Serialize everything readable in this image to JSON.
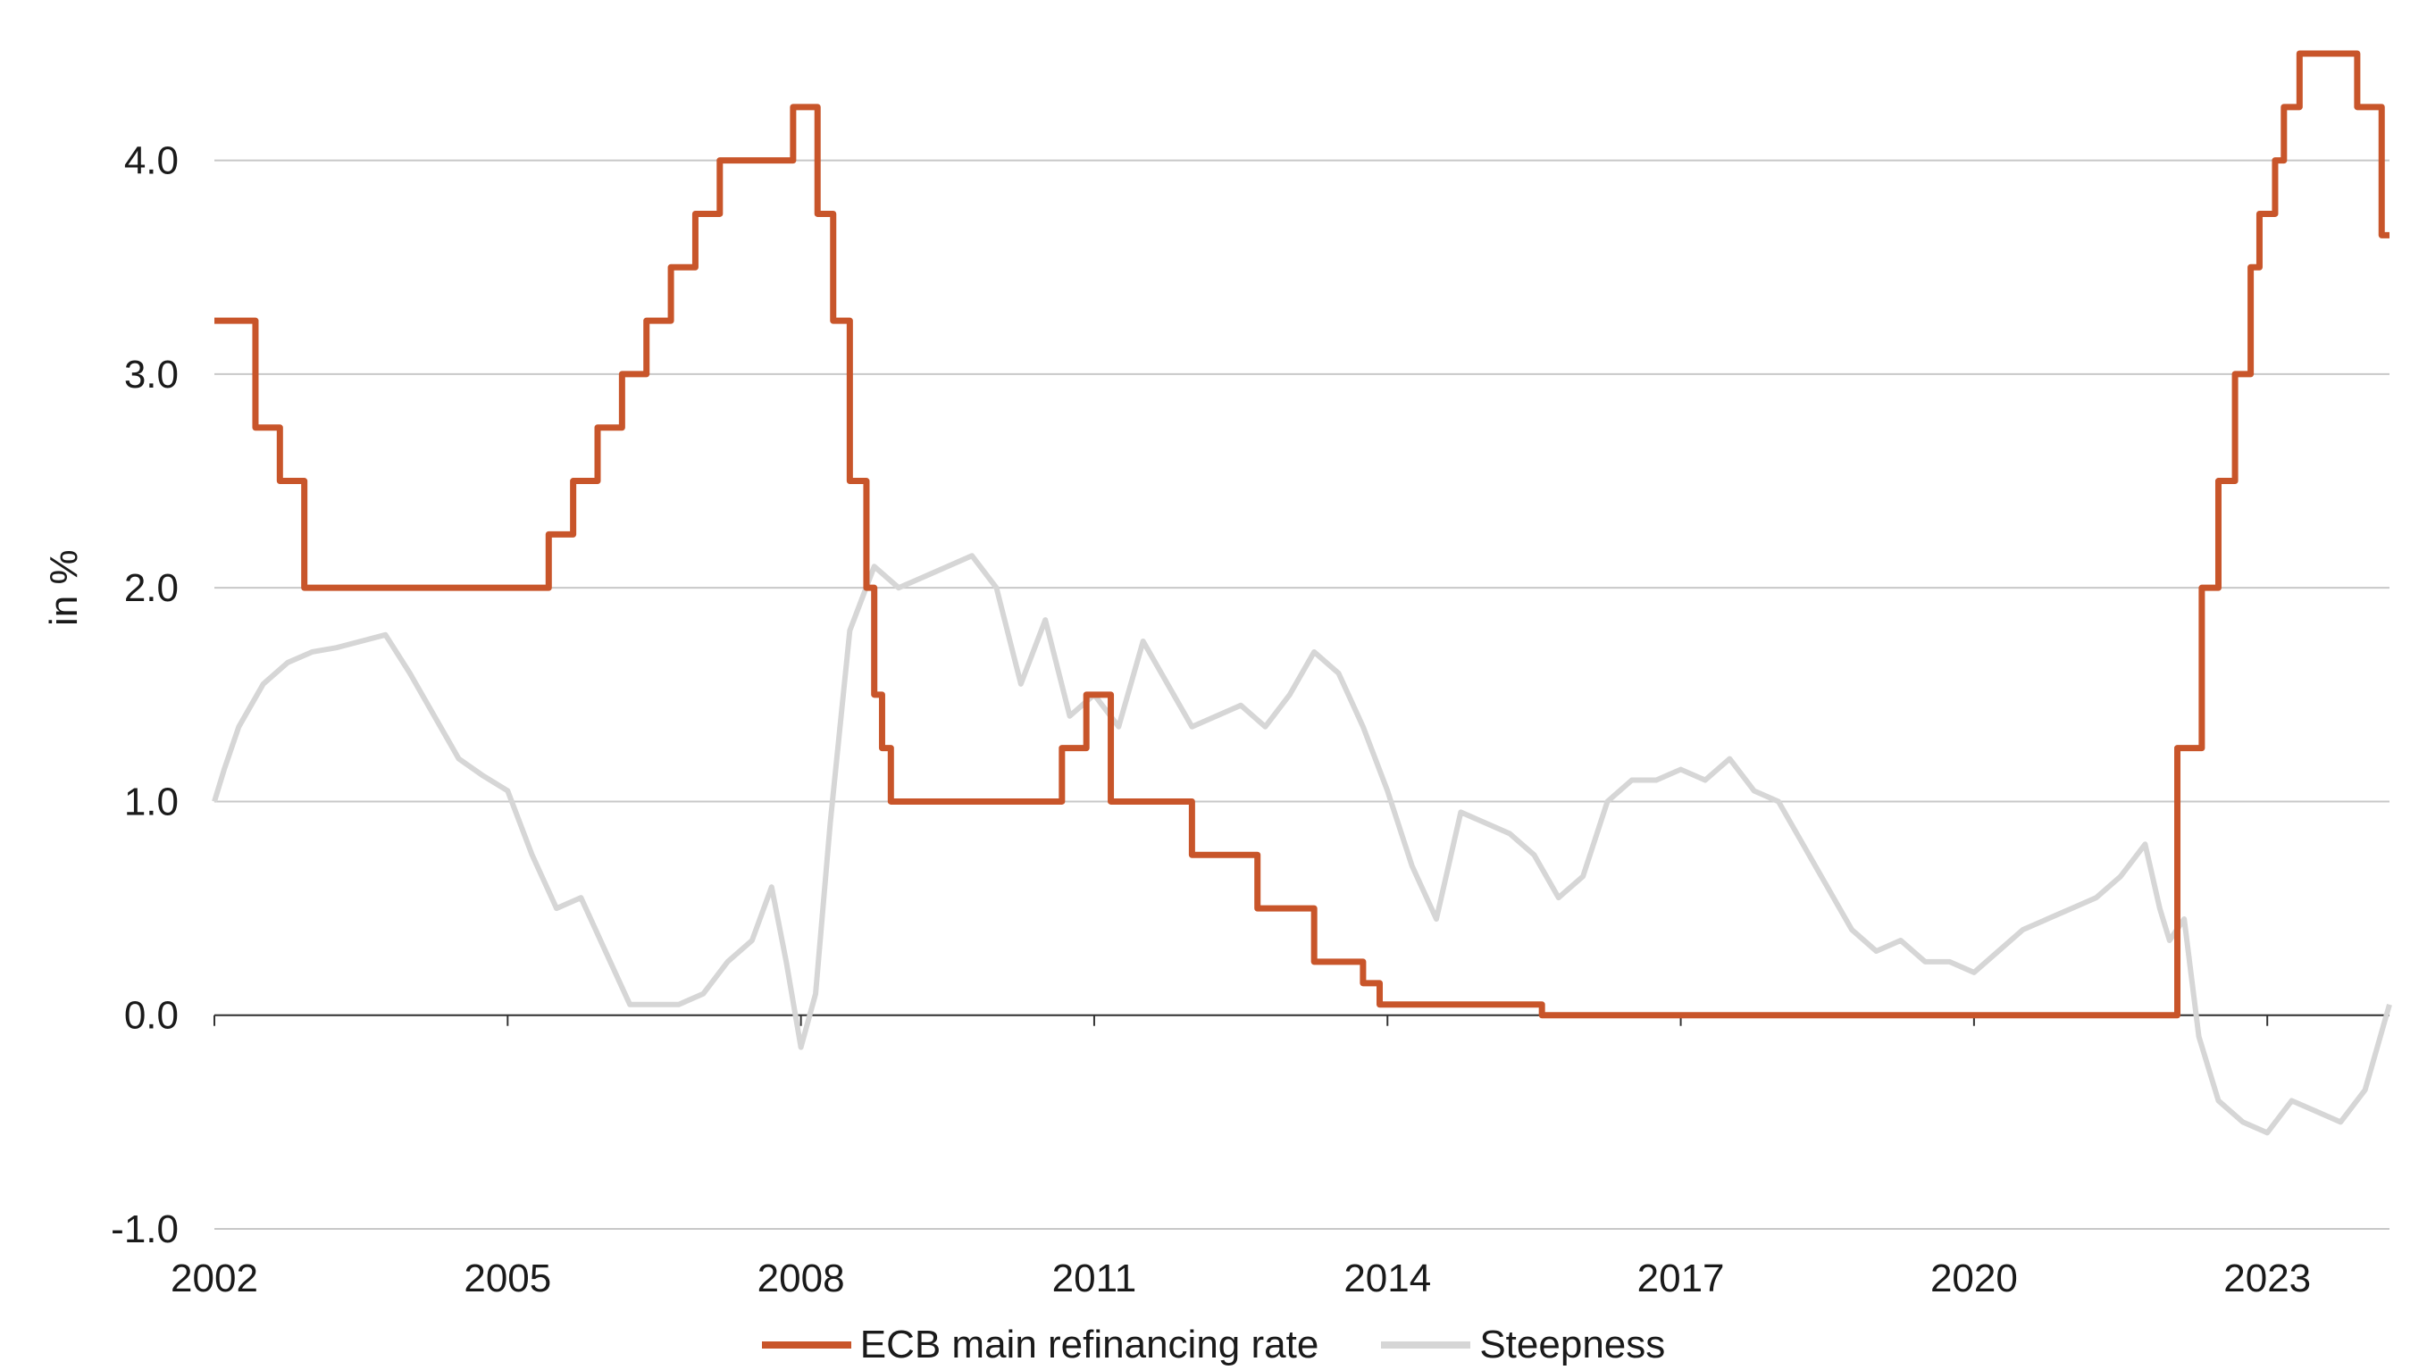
{
  "chart_data": {
    "type": "line",
    "title": "",
    "xlabel": "",
    "ylabel": "in %",
    "xlim": [
      2002.0,
      2024.25
    ],
    "ylim": [
      -1.0,
      4.5
    ],
    "x_ticks": [
      2002,
      2005,
      2008,
      2011,
      2014,
      2017,
      2020,
      2023
    ],
    "x_tick_labels": [
      "2002",
      "2005",
      "2008",
      "2011",
      "2014",
      "2017",
      "2020",
      "2023"
    ],
    "y_ticks": [
      -1.0,
      0.0,
      1.0,
      2.0,
      3.0,
      4.0
    ],
    "y_tick_labels": [
      "-1.0",
      "0.0",
      "1.0",
      "2.0",
      "3.0",
      "4.0"
    ],
    "grid": "horizontal",
    "legend_position": "bottom-center",
    "series": [
      {
        "name": "ECB main refinancing rate",
        "style": "step",
        "color": "#c8552a",
        "x": [
          2002.0,
          2002.42,
          2002.67,
          2002.92,
          2005.42,
          2005.67,
          2005.92,
          2006.17,
          2006.42,
          2006.67,
          2006.92,
          2007.17,
          2007.92,
          2008.17,
          2008.33,
          2008.5,
          2008.67,
          2008.75,
          2008.83,
          2008.92,
          2009.17,
          2010.67,
          2010.92,
          2011.17,
          2011.42,
          2012.0,
          2012.67,
          2013.25,
          2013.75,
          2013.92,
          2015.58,
          2021.92,
          2022.08,
          2022.33,
          2022.5,
          2022.67,
          2022.83,
          2022.92,
          2023.08,
          2023.17,
          2023.33,
          2023.92,
          2024.17,
          2024.25
        ],
        "values": [
          3.25,
          2.75,
          2.5,
          2.0,
          2.25,
          2.5,
          2.75,
          3.0,
          3.25,
          3.5,
          3.75,
          4.0,
          4.25,
          3.75,
          3.25,
          2.5,
          2.0,
          1.5,
          1.25,
          1.0,
          1.0,
          1.25,
          1.5,
          1.0,
          1.0,
          0.75,
          0.5,
          0.25,
          0.15,
          0.05,
          0.0,
          0.0,
          1.25,
          2.0,
          2.5,
          3.0,
          3.5,
          3.75,
          4.0,
          4.25,
          4.5,
          4.25,
          3.65,
          3.65
        ]
      },
      {
        "name": "Steepness",
        "style": "line",
        "color": "#d6d6d6",
        "x": [
          2002.0,
          2002.1,
          2002.25,
          2002.5,
          2002.75,
          2003.0,
          2003.25,
          2003.5,
          2003.75,
          2004.0,
          2004.25,
          2004.5,
          2004.75,
          2005.0,
          2005.25,
          2005.5,
          2005.75,
          2006.0,
          2006.25,
          2006.5,
          2006.75,
          2007.0,
          2007.25,
          2007.5,
          2007.7,
          2007.85,
          2008.0,
          2008.15,
          2008.3,
          2008.5,
          2008.75,
          2009.0,
          2009.25,
          2009.5,
          2009.75,
          2010.0,
          2010.25,
          2010.5,
          2010.75,
          2011.0,
          2011.25,
          2011.5,
          2011.75,
          2012.0,
          2012.25,
          2012.5,
          2012.75,
          2013.0,
          2013.25,
          2013.5,
          2013.75,
          2014.0,
          2014.25,
          2014.5,
          2014.75,
          2015.0,
          2015.25,
          2015.5,
          2015.75,
          2016.0,
          2016.25,
          2016.5,
          2016.75,
          2017.0,
          2017.25,
          2017.5,
          2017.75,
          2018.0,
          2018.25,
          2018.5,
          2018.75,
          2019.0,
          2019.25,
          2019.5,
          2019.75,
          2020.0,
          2020.25,
          2020.5,
          2020.75,
          2021.0,
          2021.25,
          2021.5,
          2021.75,
          2021.9,
          2022.0,
          2022.15,
          2022.3,
          2022.5,
          2022.75,
          2023.0,
          2023.25,
          2023.5,
          2023.75,
          2024.0,
          2024.25
        ],
        "values": [
          1.0,
          1.15,
          1.35,
          1.55,
          1.65,
          1.7,
          1.72,
          1.75,
          1.78,
          1.6,
          1.4,
          1.2,
          1.12,
          1.05,
          0.75,
          0.5,
          0.55,
          0.3,
          0.05,
          0.05,
          0.05,
          0.1,
          0.25,
          0.35,
          0.6,
          0.25,
          -0.15,
          0.1,
          0.9,
          1.8,
          2.1,
          2.0,
          2.05,
          2.1,
          2.15,
          2.0,
          1.55,
          1.85,
          1.4,
          1.5,
          1.35,
          1.75,
          1.55,
          1.35,
          1.4,
          1.45,
          1.35,
          1.5,
          1.7,
          1.6,
          1.35,
          1.05,
          0.7,
          0.45,
          0.95,
          0.9,
          0.85,
          0.75,
          0.55,
          0.65,
          1.0,
          1.1,
          1.1,
          1.15,
          1.1,
          1.2,
          1.05,
          1.0,
          0.8,
          0.6,
          0.4,
          0.3,
          0.35,
          0.25,
          0.25,
          0.2,
          0.3,
          0.4,
          0.45,
          0.5,
          0.55,
          0.65,
          0.8,
          0.5,
          0.35,
          0.45,
          -0.1,
          -0.4,
          -0.5,
          -0.55,
          -0.4,
          -0.45,
          -0.5,
          -0.35,
          0.05
        ]
      }
    ]
  }
}
